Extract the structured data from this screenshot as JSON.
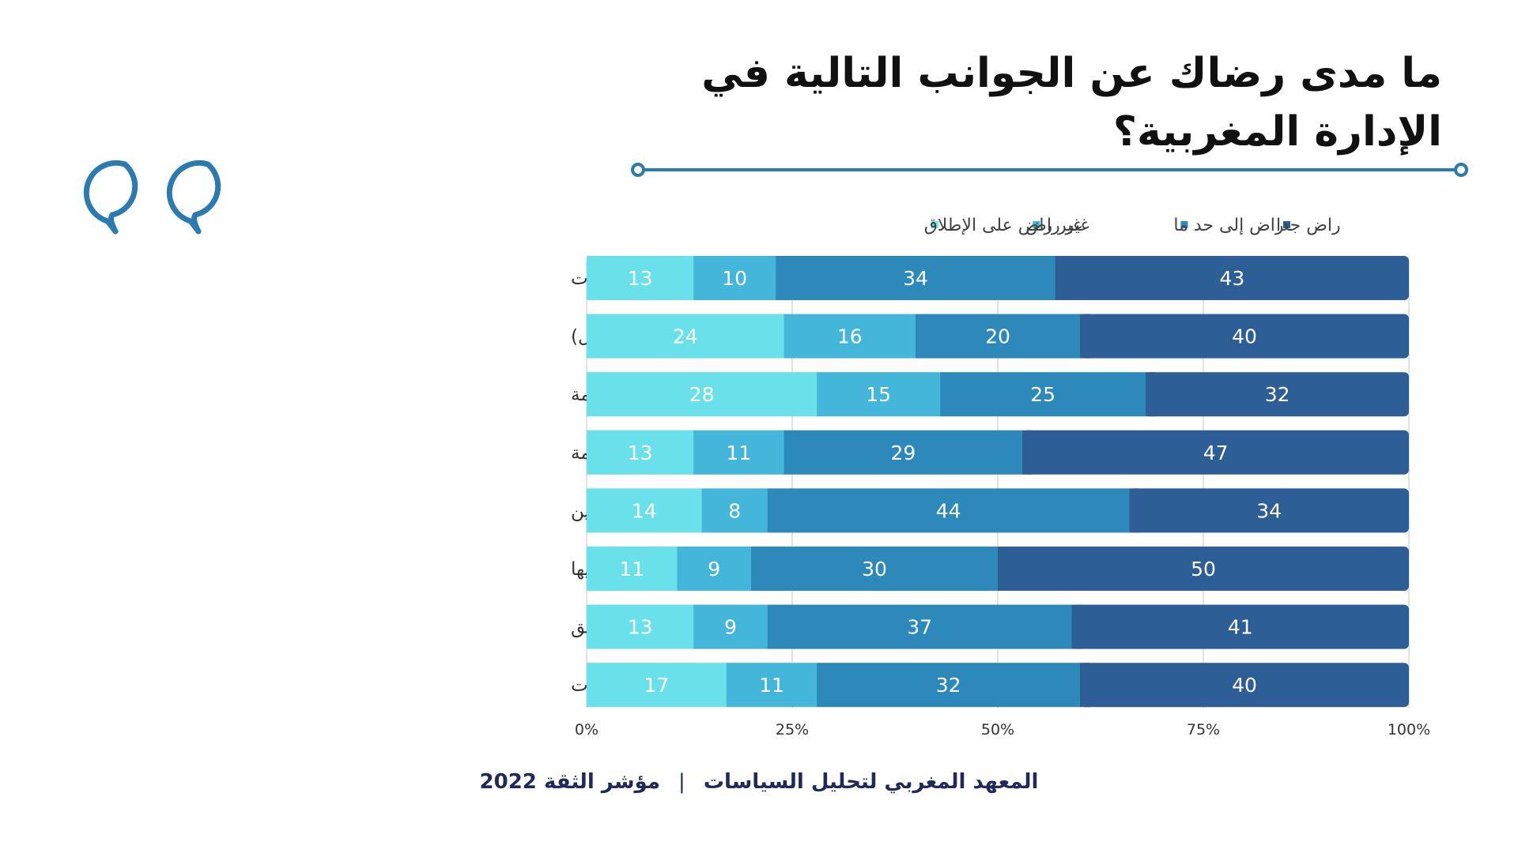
{
  "title": "ما مدى رضاك عن الجوانب التالية في الإدارة المغربية؟",
  "footer": {
    "institute": "المعهد المغربي لتحليل السياسات",
    "separator": "|",
    "index": "مؤشر الثقة 2022"
  },
  "colors": {
    "accent": "#2b7bb0",
    "very_satisfied": "#2e5e96",
    "somewhat_satisfied": "#2e89bb",
    "not_satisfied": "#44b6d9",
    "not_satisfied_at_all": "#69e0ea"
  },
  "icons": {
    "quote": "quotation-mark-icon"
  },
  "chart_data": {
    "type": "bar",
    "orientation": "horizontal",
    "stacked": "percent",
    "categories": [
      "القدرة على فهم الإجراءات",
      "إمكانية تقديم شكوى رسمية(في حالة وجود مشاكل)",
      "الوقت المستغرق لتقديم الخدمة",
      "تكاليف الخدمة",
      "كفاءة وأداء الموظفين",
      "إمكانية الوصول / يسهل الولوج إليها",
      "جودة المبنى /المرافق",
      "توفر وجودة المعلومات المتعلقة بالإجراءات"
    ],
    "series": [
      {
        "name": "غير راض على الإطلاق",
        "color": "#69e0ea",
        "values": [
          13,
          24,
          28,
          13,
          14,
          11,
          13,
          17
        ]
      },
      {
        "name": "غير راض",
        "color": "#44b6d9",
        "values": [
          10,
          16,
          15,
          11,
          8,
          9,
          9,
          11
        ]
      },
      {
        "name": "راض إلى حد ما",
        "color": "#2e89bb",
        "values": [
          34,
          20,
          25,
          29,
          44,
          30,
          37,
          32
        ]
      },
      {
        "name": "راض جدا",
        "color": "#2e5e96",
        "values": [
          43,
          40,
          32,
          47,
          34,
          50,
          41,
          40
        ]
      }
    ],
    "legend_order": [
      "راض جدا",
      "راض إلى حد ما",
      "غير راض",
      "غير راض على الإطلاق"
    ],
    "xtick_labels": [
      "0%",
      "25%",
      "50%",
      "75%",
      "100%"
    ],
    "xlim": [
      0,
      100
    ],
    "grid": true,
    "legend": "top"
  }
}
